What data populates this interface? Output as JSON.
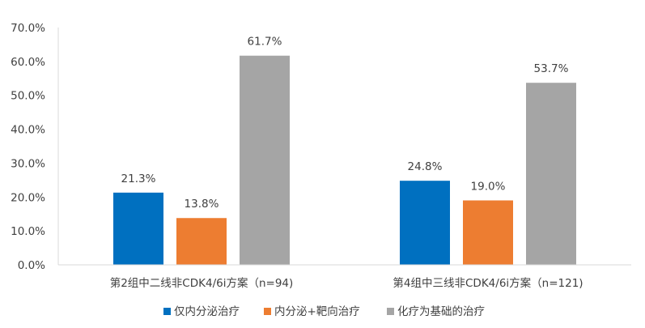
{
  "chart_data": {
    "type": "bar",
    "categories": [
      "第2组中二线非CDK4/6i方案（n=94)",
      "第4组中三线非CDK4/6i方案（n=121)"
    ],
    "series": [
      {
        "name": "仅内分泌治疗",
        "color": "#0070C0",
        "values": [
          21.3,
          24.8
        ],
        "labels": [
          "21.3%",
          "24.8%"
        ]
      },
      {
        "name": "内分泌+靶向治疗",
        "color": "#ED7D31",
        "values": [
          13.8,
          19.0
        ],
        "labels": [
          "13.8%",
          "19.0%"
        ]
      },
      {
        "name": "化疗为基础的治疗",
        "color": "#A5A5A5",
        "values": [
          61.7,
          53.7
        ],
        "labels": [
          "61.7%",
          "53.7%"
        ]
      }
    ],
    "yticks": [
      "0.0%",
      "10.0%",
      "20.0%",
      "30.0%",
      "40.0%",
      "50.0%",
      "60.0%",
      "70.0%"
    ],
    "ylim": [
      0,
      70
    ],
    "grid": false,
    "legend_position": "bottom"
  }
}
